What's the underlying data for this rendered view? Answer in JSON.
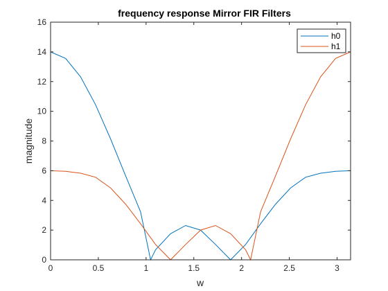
{
  "chart_data": {
    "type": "line",
    "title": "frequency response Mirror FIR Filters",
    "xlabel": "w",
    "ylabel": "magnitude",
    "xlim": [
      0,
      3.14159
    ],
    "ylim": [
      0,
      16
    ],
    "xticks": [
      0,
      0.5,
      1,
      1.5,
      2,
      2.5,
      3
    ],
    "xtick_labels": [
      "0",
      "0.5",
      "1",
      "1.5",
      "2",
      "2.5",
      "3"
    ],
    "yticks": [
      0,
      2,
      4,
      6,
      8,
      10,
      12,
      14,
      16
    ],
    "ytick_labels": [
      "0",
      "2",
      "4",
      "6",
      "8",
      "10",
      "12",
      "14",
      "16"
    ],
    "grid": false,
    "legend_position": "top-right",
    "series": [
      {
        "name": "h0",
        "color": "#0072BD",
        "x": [
          0,
          0.1571,
          0.3142,
          0.4712,
          0.6283,
          0.7854,
          0.9425,
          1.0472,
          1.0996,
          1.2566,
          1.4137,
          1.5708,
          1.7279,
          1.885,
          2.042,
          2.1991,
          2.3562,
          2.5133,
          2.6704,
          2.8274,
          2.9845,
          3.1416
        ],
        "y": [
          14.0,
          13.56,
          12.32,
          10.44,
          8.14,
          5.66,
          3.23,
          0.0,
          0.68,
          1.76,
          2.31,
          2.0,
          1.03,
          0.0,
          1.03,
          2.43,
          3.75,
          4.84,
          5.56,
          5.83,
          5.96,
          6.0
        ]
      },
      {
        "name": "h1",
        "color": "#D95319",
        "x": [
          0,
          0.1571,
          0.3142,
          0.4712,
          0.6283,
          0.7854,
          0.9425,
          1.0996,
          1.2566,
          1.4137,
          1.5708,
          1.7279,
          1.885,
          2.042,
          2.0944,
          2.1991,
          2.3562,
          2.5133,
          2.6704,
          2.8274,
          2.9845,
          3.1416
        ],
        "y": [
          6.0,
          5.96,
          5.83,
          5.56,
          4.84,
          3.75,
          2.43,
          1.03,
          0.0,
          1.03,
          2.0,
          2.31,
          1.76,
          0.68,
          0.0,
          3.23,
          5.66,
          8.14,
          10.44,
          12.32,
          13.56,
          14.0
        ]
      }
    ]
  }
}
